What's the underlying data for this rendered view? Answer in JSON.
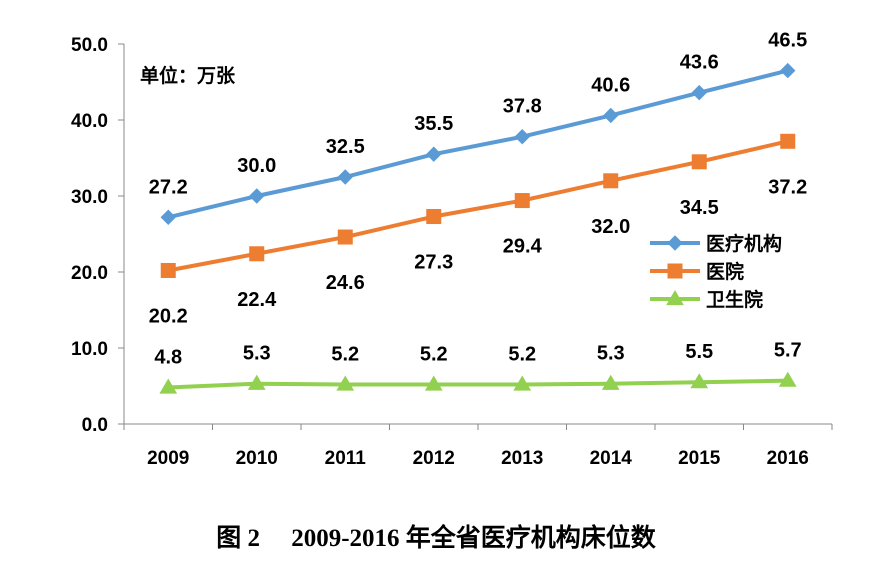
{
  "chart_data": {
    "type": "line",
    "unit_label": "单位：万张",
    "categories": [
      "2009",
      "2010",
      "2011",
      "2012",
      "2013",
      "2014",
      "2015",
      "2016"
    ],
    "y_ticks": [
      "0.0",
      "10.0",
      "20.0",
      "30.0",
      "40.0",
      "50.0"
    ],
    "ylim": [
      0,
      50
    ],
    "grid": false,
    "legend_position": "right",
    "series": [
      {
        "name": "医疗机构",
        "color": "#5b9bd5",
        "marker": "diamond",
        "values": [
          27.2,
          30.0,
          32.5,
          35.5,
          37.8,
          40.6,
          43.6,
          46.5
        ],
        "labels": [
          "27.2",
          "30.0",
          "32.5",
          "35.5",
          "37.8",
          "40.6",
          "43.6",
          "46.5"
        ]
      },
      {
        "name": "医院",
        "color": "#ed7d31",
        "marker": "square",
        "values": [
          20.2,
          22.4,
          24.6,
          27.3,
          29.4,
          32.0,
          34.5,
          37.2
        ],
        "labels": [
          "20.2",
          "22.4",
          "24.6",
          "27.3",
          "29.4",
          "32.0",
          "34.5",
          "37.2"
        ]
      },
      {
        "name": "卫生院",
        "color": "#92d050",
        "marker": "triangle",
        "values": [
          4.8,
          5.3,
          5.2,
          5.2,
          5.2,
          5.3,
          5.5,
          5.7
        ],
        "labels": [
          "4.8",
          "5.3",
          "5.2",
          "5.2",
          "5.2",
          "5.3",
          "5.5",
          "5.7"
        ]
      }
    ]
  },
  "caption": {
    "text": "图 2     2009-2016 年全省医疗机构床位数"
  }
}
